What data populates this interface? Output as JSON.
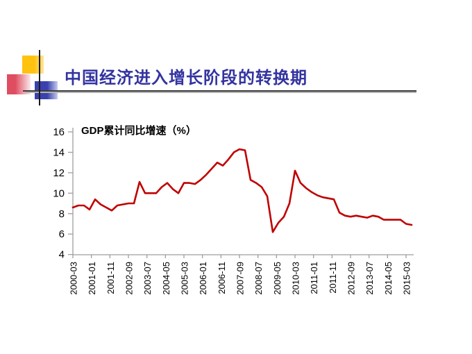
{
  "slide": {
    "title": "中国经济进入增长阶段的转换期",
    "title_color": "#3333a0",
    "decoration": {
      "yellow_square": "#ffc20e",
      "pink_square": "#df4d60",
      "blue_square": "#3a41ad",
      "line_color": "#3d3d3d"
    }
  },
  "chart_data": {
    "type": "line",
    "title": "GDP累计同比增速（%）",
    "series_name": "GDP累计同比增速",
    "line_color": "#c00000",
    "axis_color": "#9e9e9e",
    "label_color": "#000000",
    "ylim": [
      4,
      16
    ],
    "y_ticks": [
      16,
      14,
      12,
      10,
      8,
      6,
      4
    ],
    "grid": "off",
    "legend": "none",
    "x_tick_interval_months": 10,
    "x_tick_labels": [
      "2000-03",
      "2001-01",
      "2001-11",
      "2002-09",
      "2003-07",
      "2004-05",
      "2005-03",
      "2006-01",
      "2006-11",
      "2007-09",
      "2008-07",
      "2009-05",
      "2010-03",
      "2011-01",
      "2011-11",
      "2012-09",
      "2013-07",
      "2014-05",
      "2015-03"
    ],
    "points": [
      {
        "date": "2000-03",
        "value": 8.6
      },
      {
        "date": "2000-06",
        "value": 8.8
      },
      {
        "date": "2000-09",
        "value": 8.8
      },
      {
        "date": "2000-12",
        "value": 8.4
      },
      {
        "date": "2001-03",
        "value": 9.4
      },
      {
        "date": "2001-06",
        "value": 8.9
      },
      {
        "date": "2001-09",
        "value": 8.6
      },
      {
        "date": "2001-12",
        "value": 8.3
      },
      {
        "date": "2002-03",
        "value": 8.8
      },
      {
        "date": "2002-06",
        "value": 8.9
      },
      {
        "date": "2002-09",
        "value": 9.0
      },
      {
        "date": "2002-12",
        "value": 9.0
      },
      {
        "date": "2003-03",
        "value": 11.1
      },
      {
        "date": "2003-06",
        "value": 10.0
      },
      {
        "date": "2003-09",
        "value": 10.0
      },
      {
        "date": "2003-12",
        "value": 10.0
      },
      {
        "date": "2004-03",
        "value": 10.6
      },
      {
        "date": "2004-06",
        "value": 11.0
      },
      {
        "date": "2004-09",
        "value": 10.4
      },
      {
        "date": "2004-12",
        "value": 10.0
      },
      {
        "date": "2005-03",
        "value": 11.0
      },
      {
        "date": "2005-06",
        "value": 11.0
      },
      {
        "date": "2005-09",
        "value": 10.9
      },
      {
        "date": "2005-12",
        "value": 11.3
      },
      {
        "date": "2006-03",
        "value": 11.8
      },
      {
        "date": "2006-06",
        "value": 12.4
      },
      {
        "date": "2006-09",
        "value": 13.0
      },
      {
        "date": "2006-12",
        "value": 12.7
      },
      {
        "date": "2007-03",
        "value": 13.3
      },
      {
        "date": "2007-06",
        "value": 14.0
      },
      {
        "date": "2007-09",
        "value": 14.3
      },
      {
        "date": "2007-12",
        "value": 14.2
      },
      {
        "date": "2008-03",
        "value": 11.3
      },
      {
        "date": "2008-06",
        "value": 11.0
      },
      {
        "date": "2008-09",
        "value": 10.6
      },
      {
        "date": "2008-12",
        "value": 9.7
      },
      {
        "date": "2009-03",
        "value": 6.2
      },
      {
        "date": "2009-06",
        "value": 7.1
      },
      {
        "date": "2009-09",
        "value": 7.7
      },
      {
        "date": "2009-12",
        "value": 9.0
      },
      {
        "date": "2010-03",
        "value": 12.2
      },
      {
        "date": "2010-06",
        "value": 11.0
      },
      {
        "date": "2010-09",
        "value": 10.5
      },
      {
        "date": "2010-12",
        "value": 10.1
      },
      {
        "date": "2011-03",
        "value": 9.8
      },
      {
        "date": "2011-06",
        "value": 9.6
      },
      {
        "date": "2011-09",
        "value": 9.5
      },
      {
        "date": "2011-12",
        "value": 9.4
      },
      {
        "date": "2012-03",
        "value": 8.1
      },
      {
        "date": "2012-06",
        "value": 7.8
      },
      {
        "date": "2012-09",
        "value": 7.7
      },
      {
        "date": "2012-12",
        "value": 7.8
      },
      {
        "date": "2013-03",
        "value": 7.7
      },
      {
        "date": "2013-06",
        "value": 7.6
      },
      {
        "date": "2013-09",
        "value": 7.8
      },
      {
        "date": "2013-12",
        "value": 7.7
      },
      {
        "date": "2014-03",
        "value": 7.4
      },
      {
        "date": "2014-06",
        "value": 7.4
      },
      {
        "date": "2014-09",
        "value": 7.4
      },
      {
        "date": "2014-12",
        "value": 7.4
      },
      {
        "date": "2015-03",
        "value": 7.0
      },
      {
        "date": "2015-06",
        "value": 6.9
      }
    ]
  }
}
